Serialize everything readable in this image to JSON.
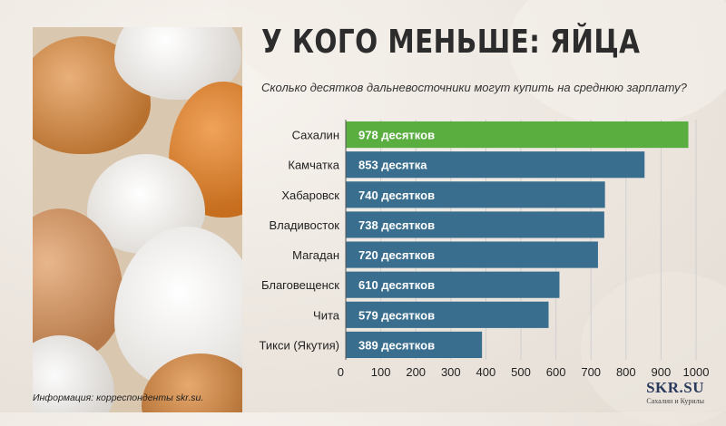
{
  "header": {
    "title": "У КОГО МЕНЬШЕ: ЯЙЦА",
    "subtitle": "Сколько десятков дальневосточники могут купить на среднюю зарплату?"
  },
  "footer": {
    "source": "Информация: корреспонденты skr.su.",
    "logo_main": "SKR.SU",
    "logo_sub": "Сахалин и Курилы"
  },
  "colors": {
    "highlight": "#5aae3f",
    "bar": "#3a6e8f",
    "grid": "#cfcfcf"
  },
  "chart_data": {
    "type": "bar",
    "orientation": "horizontal",
    "title": "У КОГО МЕНЬШЕ: ЯЙЦА",
    "subtitle": "Сколько десятков дальневосточники могут купить на среднюю зарплату?",
    "categories": [
      "Сахалин",
      "Камчатка",
      "Хабаровск",
      "Владивосток",
      "Магадан",
      "Благовещенск",
      "Чита",
      "Тикси (Якутия)"
    ],
    "values": [
      978,
      853,
      740,
      738,
      720,
      610,
      579,
      389
    ],
    "data_labels": [
      "978 десятков",
      "853 десятка",
      "740 десятков",
      "738 десятков",
      "720 десятков",
      "610 десятков",
      "579 десятков",
      "389 десятков"
    ],
    "highlight_index": 0,
    "xlim": [
      0,
      1000
    ],
    "xticks": [
      "0",
      "100",
      "200",
      "300",
      "400",
      "500",
      "600",
      "700",
      "800",
      "900",
      "1000"
    ],
    "grid": true
  }
}
